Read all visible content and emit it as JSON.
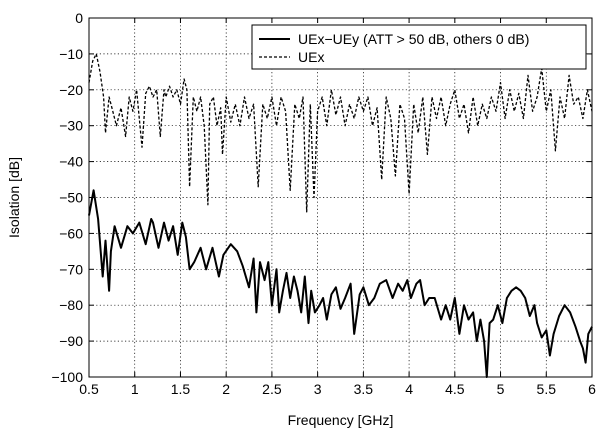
{
  "chart_data": {
    "type": "line",
    "xlabel": "Frequency [GHz]",
    "ylabel": "Isolation [dB]",
    "xlim": [
      0.5,
      6
    ],
    "ylim": [
      -100,
      0
    ],
    "x_ticks": [
      0.5,
      1,
      1.5,
      2,
      2.5,
      3,
      3.5,
      4,
      4.5,
      5,
      5.5,
      6
    ],
    "x_tick_labels": [
      "0.5",
      "1",
      "1.5",
      "2",
      "2.5",
      "3",
      "3.5",
      "4",
      "4.5",
      "5",
      "5.5",
      "6"
    ],
    "y_ticks": [
      0,
      -10,
      -20,
      -30,
      -40,
      -50,
      -60,
      -70,
      -80,
      -90,
      -100
    ],
    "y_tick_labels": [
      "0",
      "−10",
      "−20",
      "−30",
      "−40",
      "−50",
      "−60",
      "−70",
      "−80",
      "−90",
      "−100"
    ],
    "grid": true,
    "legend_position": "top-right",
    "series": [
      {
        "name": "UEx−UEy (ATT > 50 dB, others 0 dB)",
        "style": "solid",
        "color": "#000000",
        "x": [
          0.5,
          0.55,
          0.6,
          0.65,
          0.68,
          0.72,
          0.74,
          0.78,
          0.85,
          0.92,
          0.98,
          1.05,
          1.12,
          1.18,
          1.2,
          1.26,
          1.32,
          1.37,
          1.42,
          1.47,
          1.52,
          1.56,
          1.6,
          1.65,
          1.72,
          1.78,
          1.85,
          1.92,
          1.97,
          2.05,
          2.12,
          2.18,
          2.25,
          2.3,
          2.33,
          2.37,
          2.42,
          2.46,
          2.5,
          2.55,
          2.58,
          2.62,
          2.66,
          2.7,
          2.74,
          2.78,
          2.82,
          2.86,
          2.9,
          2.93,
          2.97,
          3.02,
          3.06,
          3.1,
          3.15,
          3.2,
          3.25,
          3.3,
          3.36,
          3.4,
          3.46,
          3.5,
          3.56,
          3.62,
          3.68,
          3.75,
          3.82,
          3.88,
          3.93,
          3.98,
          4.02,
          4.08,
          4.12,
          4.17,
          4.22,
          4.28,
          4.35,
          4.4,
          4.45,
          4.5,
          4.55,
          4.6,
          4.65,
          4.7,
          4.74,
          4.78,
          4.82,
          4.85,
          4.88,
          4.92,
          4.97,
          5.02,
          5.07,
          5.12,
          5.17,
          5.22,
          5.27,
          5.32,
          5.37,
          5.4,
          5.45,
          5.5,
          5.54,
          5.58,
          5.64,
          5.7,
          5.76,
          5.82,
          5.87,
          5.9,
          5.93,
          5.96,
          6.0
        ],
        "y": [
          -55,
          -48,
          -56,
          -72,
          -62,
          -76,
          -65,
          -58,
          -64,
          -58,
          -60,
          -57,
          -63,
          -56,
          -57,
          -64,
          -57,
          -62,
          -58,
          -66,
          -57,
          -61,
          -70,
          -68,
          -64,
          -70,
          -64,
          -72,
          -66,
          -63,
          -65,
          -69,
          -75,
          -67,
          -82,
          -68,
          -73,
          -68,
          -80,
          -70,
          -82,
          -76,
          -71,
          -78,
          -72,
          -76,
          -82,
          -72,
          -85,
          -76,
          -82,
          -80,
          -78,
          -84,
          -77,
          -75,
          -81,
          -78,
          -74,
          -88,
          -77,
          -75,
          -80,
          -78,
          -74,
          -73,
          -78,
          -74,
          -76,
          -73,
          -78,
          -74,
          -73,
          -80,
          -78,
          -78,
          -84,
          -80,
          -84,
          -78,
          -88,
          -80,
          -84,
          -82,
          -90,
          -84,
          -90,
          -100,
          -85,
          -84,
          -80,
          -85,
          -78,
          -76,
          -75,
          -76,
          -78,
          -83,
          -80,
          -85,
          -89,
          -87,
          -94,
          -88,
          -83,
          -80,
          -82,
          -86,
          -90,
          -92,
          -96,
          -88,
          -86
        ]
      },
      {
        "name": "UEx",
        "style": "dashed",
        "color": "#000000",
        "x": [
          0.5,
          0.54,
          0.58,
          0.62,
          0.66,
          0.68,
          0.72,
          0.76,
          0.8,
          0.85,
          0.9,
          0.94,
          0.98,
          1.02,
          1.05,
          1.08,
          1.12,
          1.16,
          1.2,
          1.24,
          1.28,
          1.32,
          1.34,
          1.38,
          1.42,
          1.46,
          1.5,
          1.54,
          1.57,
          1.6,
          1.64,
          1.68,
          1.72,
          1.76,
          1.8,
          1.82,
          1.86,
          1.9,
          1.94,
          1.96,
          2.0,
          2.05,
          2.1,
          2.15,
          2.2,
          2.25,
          2.3,
          2.35,
          2.4,
          2.45,
          2.5,
          2.55,
          2.6,
          2.65,
          2.7,
          2.75,
          2.8,
          2.84,
          2.88,
          2.92,
          2.96,
          3.0,
          3.05,
          3.1,
          3.15,
          3.2,
          3.25,
          3.3,
          3.35,
          3.4,
          3.45,
          3.5,
          3.55,
          3.6,
          3.65,
          3.7,
          3.75,
          3.8,
          3.85,
          3.9,
          3.95,
          4.0,
          4.05,
          4.1,
          4.15,
          4.2,
          4.25,
          4.3,
          4.35,
          4.4,
          4.45,
          4.5,
          4.55,
          4.6,
          4.65,
          4.7,
          4.75,
          4.8,
          4.85,
          4.9,
          4.95,
          5.0,
          5.05,
          5.1,
          5.15,
          5.2,
          5.25,
          5.3,
          5.35,
          5.4,
          5.45,
          5.5,
          5.55,
          5.6,
          5.65,
          5.7,
          5.75,
          5.8,
          5.85,
          5.9,
          5.95,
          6.0
        ],
        "y": [
          -18,
          -12,
          -10,
          -15,
          -22,
          -32,
          -22,
          -26,
          -30,
          -25,
          -33,
          -22,
          -26,
          -20,
          -28,
          -36,
          -21,
          -19,
          -22,
          -20,
          -33,
          -20,
          -22,
          -19,
          -22,
          -20,
          -24,
          -17,
          -20,
          -47,
          -22,
          -26,
          -22,
          -30,
          -52,
          -24,
          -22,
          -30,
          -25,
          -38,
          -22,
          -29,
          -24,
          -30,
          -22,
          -28,
          -24,
          -47,
          -24,
          -28,
          -22,
          -30,
          -22,
          -26,
          -48,
          -24,
          -28,
          -22,
          -54,
          -24,
          -50,
          -26,
          -22,
          -30,
          -20,
          -27,
          -22,
          -30,
          -24,
          -28,
          -22,
          -26,
          -22,
          -30,
          -25,
          -45,
          -22,
          -28,
          -44,
          -24,
          -28,
          -49,
          -24,
          -32,
          -22,
          -38,
          -22,
          -28,
          -22,
          -30,
          -24,
          -20,
          -28,
          -24,
          -32,
          -22,
          -30,
          -24,
          -28,
          -22,
          -26,
          -18,
          -28,
          -20,
          -26,
          -21,
          -28,
          -16,
          -26,
          -22,
          -14,
          -26,
          -20,
          -37,
          -22,
          -28,
          -16,
          -24,
          -22,
          -28,
          -20,
          -26
        ]
      }
    ]
  }
}
